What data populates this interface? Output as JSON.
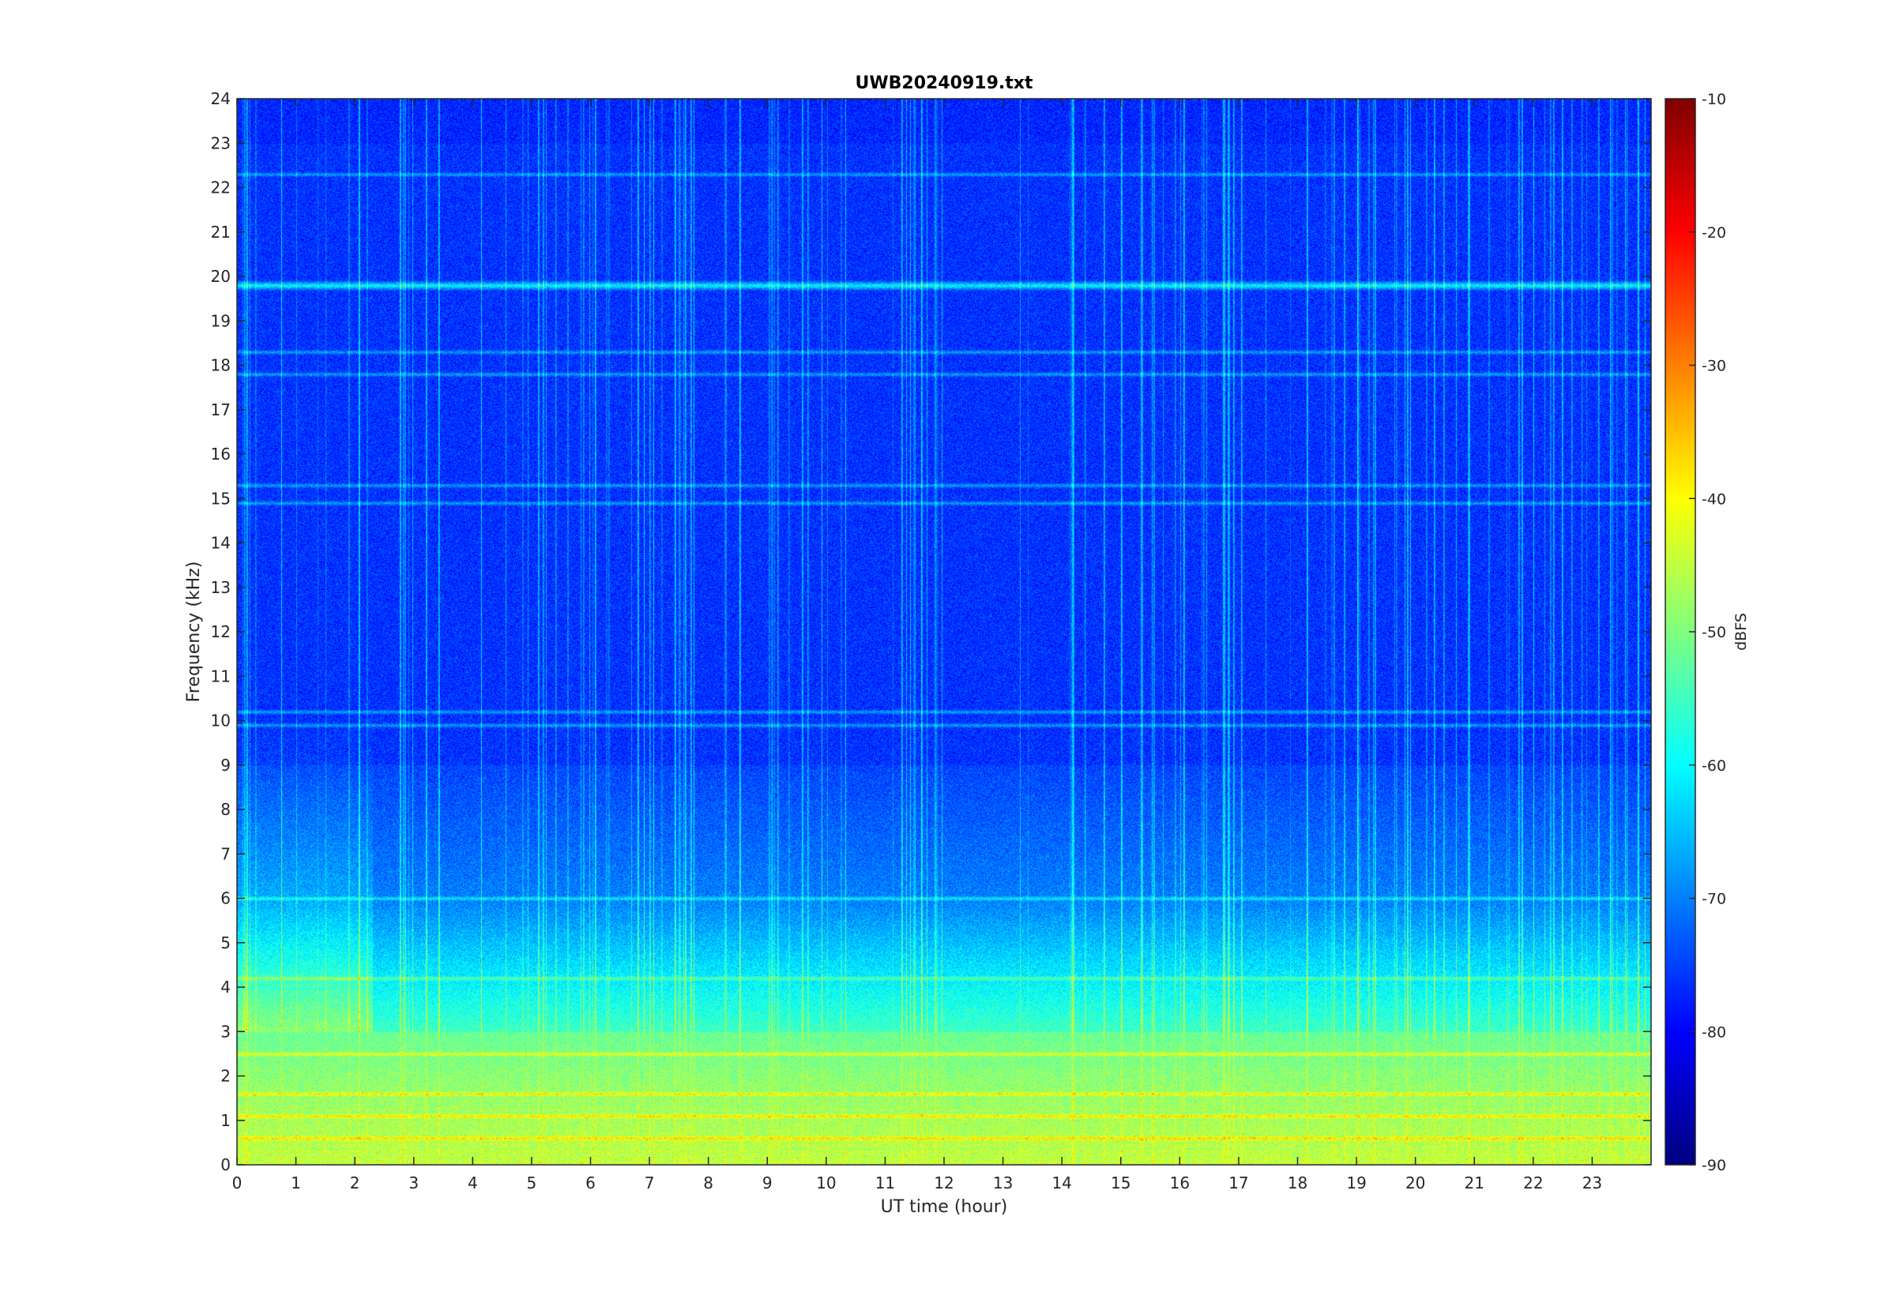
{
  "chart_data": {
    "type": "heatmap",
    "title": "UWB20240919.txt",
    "xlabel": "UT time (hour)",
    "ylabel": "Frequency (kHz)",
    "xlim": [
      0,
      24
    ],
    "ylim": [
      0,
      24
    ],
    "x_ticks": [
      "0",
      "1",
      "2",
      "3",
      "4",
      "5",
      "6",
      "7",
      "8",
      "9",
      "10",
      "11",
      "12",
      "13",
      "14",
      "15",
      "16",
      "17",
      "18",
      "19",
      "20",
      "21",
      "22",
      "23"
    ],
    "y_ticks": [
      "0",
      "1",
      "2",
      "3",
      "4",
      "5",
      "6",
      "7",
      "8",
      "9",
      "10",
      "11",
      "12",
      "13",
      "14",
      "15",
      "16",
      "17",
      "18",
      "19",
      "20",
      "21",
      "22",
      "23",
      "24"
    ],
    "colorbar": {
      "label": "dBFS",
      "colormap": "jet",
      "clim": [
        -90,
        -10
      ],
      "ticks": [
        "-90",
        "-80",
        "-70",
        "-60",
        "-50",
        "-40",
        "-30",
        "-20",
        "-10"
      ]
    },
    "features": {
      "background_dbfs": -76,
      "low_freq_band_khz": [
        0,
        3
      ],
      "low_freq_band_dbfs": -45,
      "horizontal_lines_khz": [
        19.8,
        18.3,
        22.3,
        17.8,
        15.3,
        14.9,
        10.2,
        9.9,
        6.0,
        4.2,
        2.5,
        1.6,
        1.1,
        0.6
      ],
      "strong_line_khz": 19.8
    }
  },
  "colors": {
    "axis": "#262626",
    "jet_low": "#00007f",
    "jet_high": "#7f0000"
  }
}
